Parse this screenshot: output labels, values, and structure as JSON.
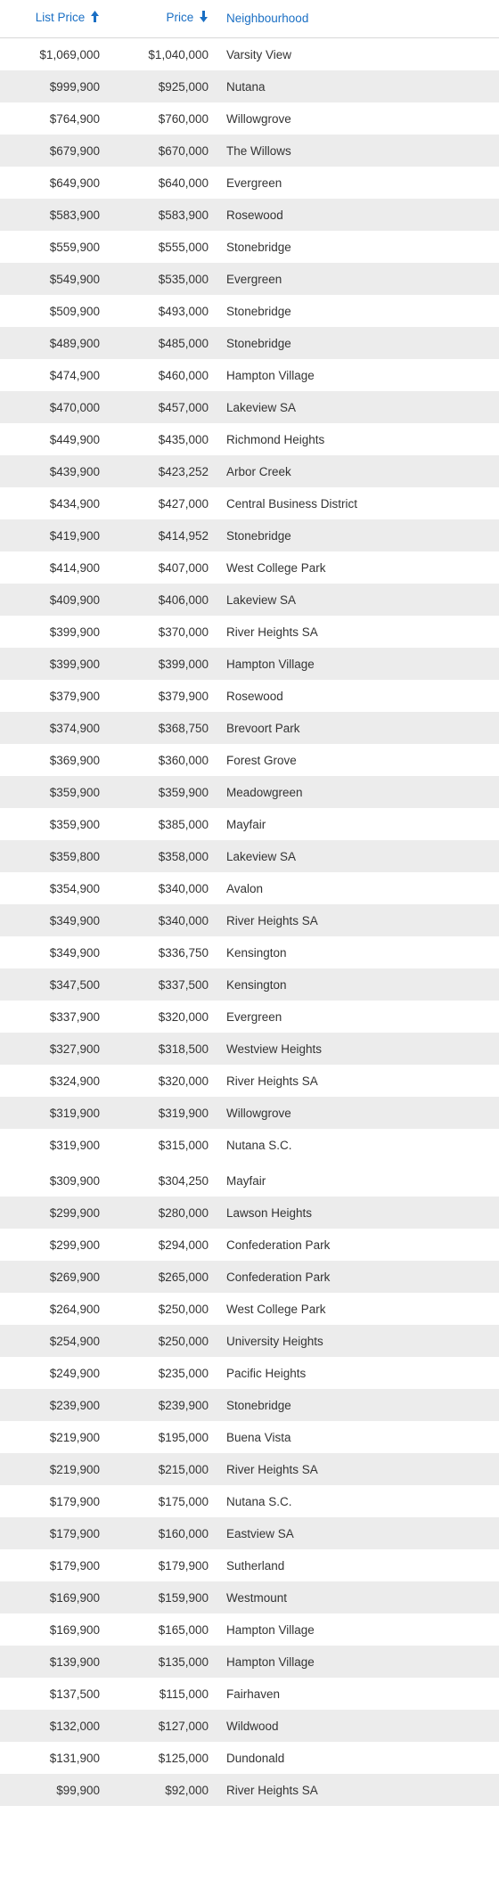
{
  "table": {
    "columns": [
      {
        "label": "List Price",
        "align": "right",
        "sort": "asc"
      },
      {
        "label": "Price",
        "align": "right",
        "sort": "desc"
      },
      {
        "label": "Neighbourhood",
        "align": "left",
        "sort": null
      }
    ],
    "header_color": "#1a6fc4",
    "row_stripe_color": "#ececec",
    "background_color": "#ffffff",
    "text_color": "#333333",
    "font_family": "Verdana",
    "font_size_pt": 10,
    "gap_after_row": 35,
    "rows": [
      [
        "$1,069,000",
        "$1,040,000",
        "Varsity View"
      ],
      [
        "$999,900",
        "$925,000",
        "Nutana"
      ],
      [
        "$764,900",
        "$760,000",
        "Willowgrove"
      ],
      [
        "$679,900",
        "$670,000",
        "The Willows"
      ],
      [
        "$649,900",
        "$640,000",
        "Evergreen"
      ],
      [
        "$583,900",
        "$583,900",
        "Rosewood"
      ],
      [
        "$559,900",
        "$555,000",
        "Stonebridge"
      ],
      [
        "$549,900",
        "$535,000",
        "Evergreen"
      ],
      [
        "$509,900",
        "$493,000",
        "Stonebridge"
      ],
      [
        "$489,900",
        "$485,000",
        "Stonebridge"
      ],
      [
        "$474,900",
        "$460,000",
        "Hampton Village"
      ],
      [
        "$470,000",
        "$457,000",
        "Lakeview SA"
      ],
      [
        "$449,900",
        "$435,000",
        "Richmond Heights"
      ],
      [
        "$439,900",
        "$423,252",
        "Arbor Creek"
      ],
      [
        "$434,900",
        "$427,000",
        "Central Business District"
      ],
      [
        "$419,900",
        "$414,952",
        "Stonebridge"
      ],
      [
        "$414,900",
        "$407,000",
        "West College Park"
      ],
      [
        "$409,900",
        "$406,000",
        "Lakeview SA"
      ],
      [
        "$399,900",
        "$370,000",
        "River Heights SA"
      ],
      [
        "$399,900",
        "$399,000",
        "Hampton Village"
      ],
      [
        "$379,900",
        "$379,900",
        "Rosewood"
      ],
      [
        "$374,900",
        "$368,750",
        "Brevoort Park"
      ],
      [
        "$369,900",
        "$360,000",
        "Forest Grove"
      ],
      [
        "$359,900",
        "$359,900",
        "Meadowgreen"
      ],
      [
        "$359,900",
        "$385,000",
        "Mayfair"
      ],
      [
        "$359,800",
        "$358,000",
        "Lakeview SA"
      ],
      [
        "$354,900",
        "$340,000",
        "Avalon"
      ],
      [
        "$349,900",
        "$340,000",
        "River Heights SA"
      ],
      [
        "$349,900",
        "$336,750",
        "Kensington"
      ],
      [
        "$347,500",
        "$337,500",
        "Kensington"
      ],
      [
        "$337,900",
        "$320,000",
        "Evergreen"
      ],
      [
        "$327,900",
        "$318,500",
        "Westview Heights"
      ],
      [
        "$324,900",
        "$320,000",
        "River Heights SA"
      ],
      [
        "$319,900",
        "$319,900",
        "Willowgrove"
      ],
      [
        "$319,900",
        "$315,000",
        "Nutana S.C."
      ],
      [
        "$309,900",
        "$304,250",
        "Mayfair"
      ],
      [
        "$299,900",
        "$280,000",
        "Lawson Heights"
      ],
      [
        "$299,900",
        "$294,000",
        "Confederation Park"
      ],
      [
        "$269,900",
        "$265,000",
        "Confederation Park"
      ],
      [
        "$264,900",
        "$250,000",
        "West College Park"
      ],
      [
        "$254,900",
        "$250,000",
        "University Heights"
      ],
      [
        "$249,900",
        "$235,000",
        "Pacific Heights"
      ],
      [
        "$239,900",
        "$239,900",
        "Stonebridge"
      ],
      [
        "$219,900",
        "$195,000",
        "Buena Vista"
      ],
      [
        "$219,900",
        "$215,000",
        "River Heights SA"
      ],
      [
        "$179,900",
        "$175,000",
        "Nutana S.C."
      ],
      [
        "$179,900",
        "$160,000",
        "Eastview SA"
      ],
      [
        "$179,900",
        "$179,900",
        "Sutherland"
      ],
      [
        "$169,900",
        "$159,900",
        "Westmount"
      ],
      [
        "$169,900",
        "$165,000",
        "Hampton Village"
      ],
      [
        "$139,900",
        "$135,000",
        "Hampton Village"
      ],
      [
        "$137,500",
        "$115,000",
        "Fairhaven"
      ],
      [
        "$132,000",
        "$127,000",
        "Wildwood"
      ],
      [
        "$131,900",
        "$125,000",
        "Dundonald"
      ],
      [
        "$99,900",
        "$92,000",
        "River Heights SA"
      ]
    ]
  }
}
